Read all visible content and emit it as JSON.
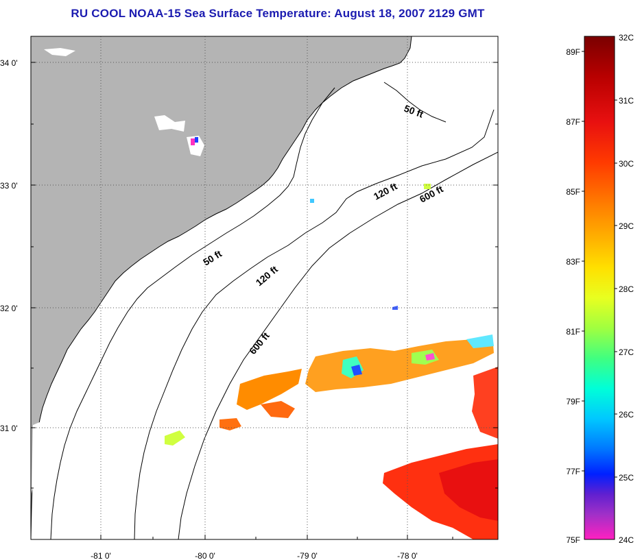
{
  "title": "RU COOL  NOAA-15  Sea Surface Temperature:  August 18, 2007 2129 GMT",
  "map": {
    "latitude_ticks": [
      "34 0'",
      "33 0'",
      "32 0'",
      "31 0'"
    ],
    "longitude_ticks": [
      "-81 0'",
      "-80 0'",
      "-79 0'",
      "-78 0'"
    ],
    "contour_labels": [
      "50 ft",
      "120 ft",
      "600 ft",
      "50 ft",
      "120 ft",
      "600 ft"
    ],
    "colors": {
      "land": "#b4b4b4",
      "ocean_clouds": "#ffffff",
      "coastline": "#000000"
    }
  },
  "colorbar": {
    "celsius_labels": [
      "32C",
      "31C",
      "30C",
      "29C",
      "28C",
      "27C",
      "26C",
      "25C",
      "24C"
    ],
    "fahrenheit_labels": [
      "89F",
      "87F",
      "85F",
      "83F",
      "81F",
      "79F",
      "77F",
      "75F"
    ],
    "gradient_colors": [
      "#7a0000",
      "#b80000",
      "#e81010",
      "#ff3a00",
      "#ff7a00",
      "#ffb000",
      "#ffe000",
      "#e8ff20",
      "#a0ff40",
      "#40ff80",
      "#00ffd8",
      "#00c8ff",
      "#0078ff",
      "#0020ff",
      "#6020d0",
      "#a030c8",
      "#ff20c0"
    ]
  }
}
